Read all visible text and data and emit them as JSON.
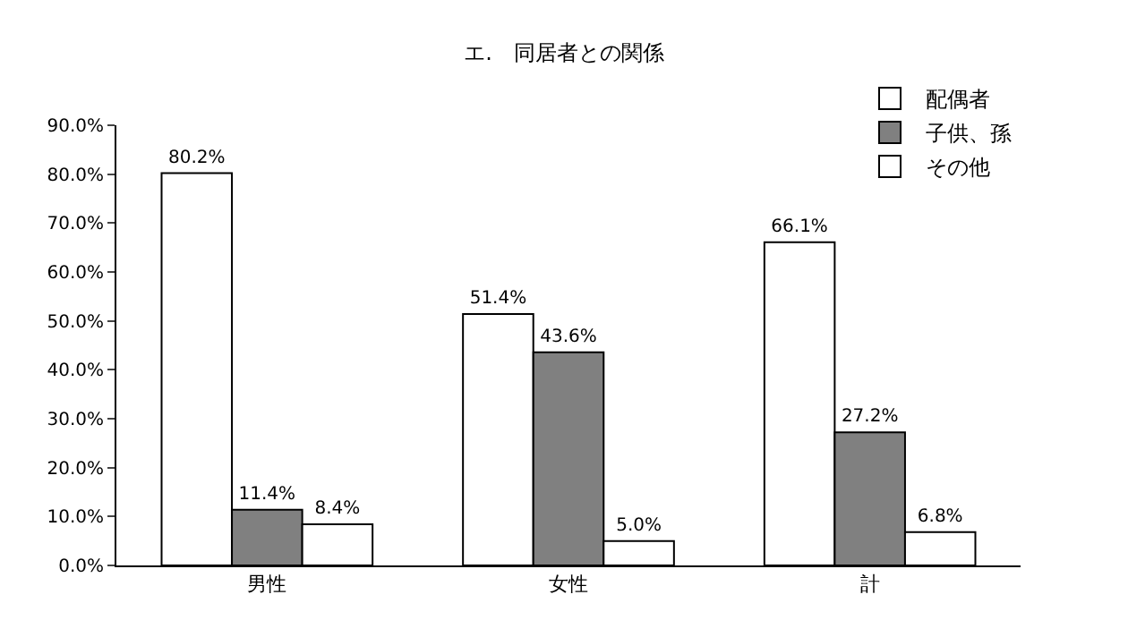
{
  "chart_data": {
    "type": "bar",
    "title": "エ.　同居者との関係",
    "categories": [
      "男性",
      "女性",
      "計"
    ],
    "series": [
      {
        "name": "配偶者",
        "color": "#ffffff",
        "values": [
          80.2,
          51.4,
          66.1
        ],
        "value_labels": [
          "80.2%",
          "51.4%",
          "66.1%"
        ]
      },
      {
        "name": "子供、孫",
        "color": "#808080",
        "values": [
          11.4,
          43.6,
          27.2
        ],
        "value_labels": [
          "11.4%",
          "43.6%",
          "27.2%"
        ]
      },
      {
        "name": "その他",
        "color": "#ffffff",
        "values": [
          8.4,
          5.0,
          6.8
        ],
        "value_labels": [
          "8.4%",
          "5.0%",
          "6.8%"
        ]
      }
    ],
    "ylim": [
      0,
      90
    ],
    "yticks": [
      {
        "value": 0,
        "label": "0.0%"
      },
      {
        "value": 10,
        "label": "10.0%"
      },
      {
        "value": 20,
        "label": "20.0%"
      },
      {
        "value": 30,
        "label": "30.0%"
      },
      {
        "value": 40,
        "label": "40.0%"
      },
      {
        "value": 50,
        "label": "50.0%"
      },
      {
        "value": 60,
        "label": "60.0%"
      },
      {
        "value": 70,
        "label": "70.0%"
      },
      {
        "value": 80,
        "label": "80.0%"
      },
      {
        "value": 90,
        "label": "90.0%"
      }
    ],
    "grid": false,
    "legend": "top right"
  }
}
